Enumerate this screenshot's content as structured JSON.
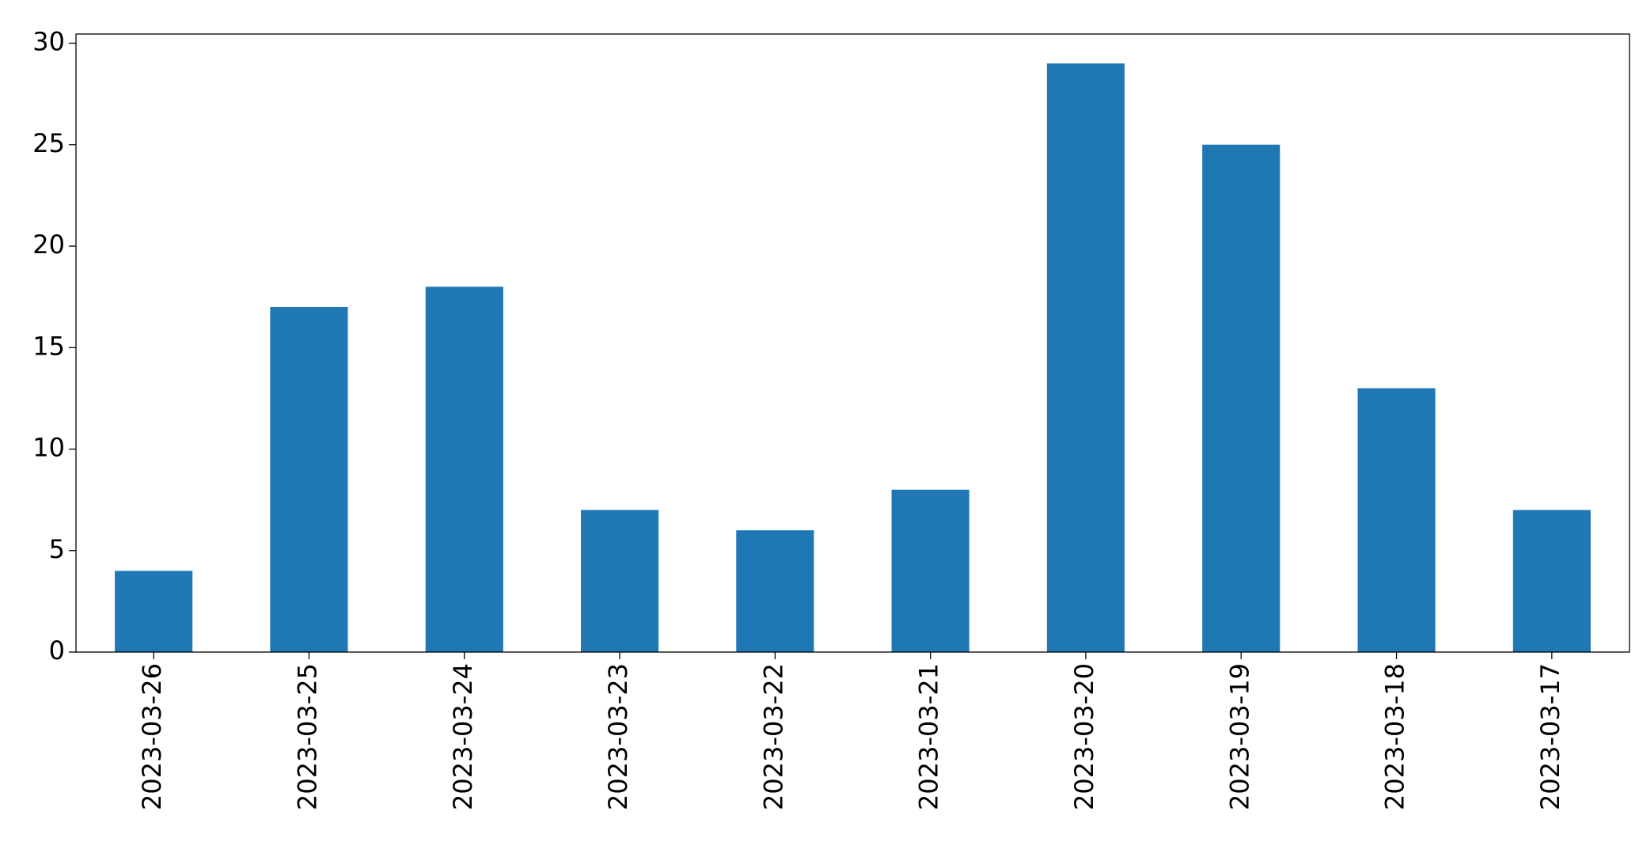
{
  "chart_data": {
    "type": "bar",
    "categories": [
      "2023-03-26",
      "2023-03-25",
      "2023-03-24",
      "2023-03-23",
      "2023-03-22",
      "2023-03-21",
      "2023-03-20",
      "2023-03-19",
      "2023-03-18",
      "2023-03-17"
    ],
    "values": [
      4,
      17,
      18,
      7,
      6,
      8,
      29,
      25,
      13,
      7
    ],
    "color": "#1f77b4",
    "ylim": [
      0,
      30.45
    ],
    "yticks": [
      0,
      5,
      10,
      15,
      20,
      25,
      30
    ],
    "grid": false
  }
}
